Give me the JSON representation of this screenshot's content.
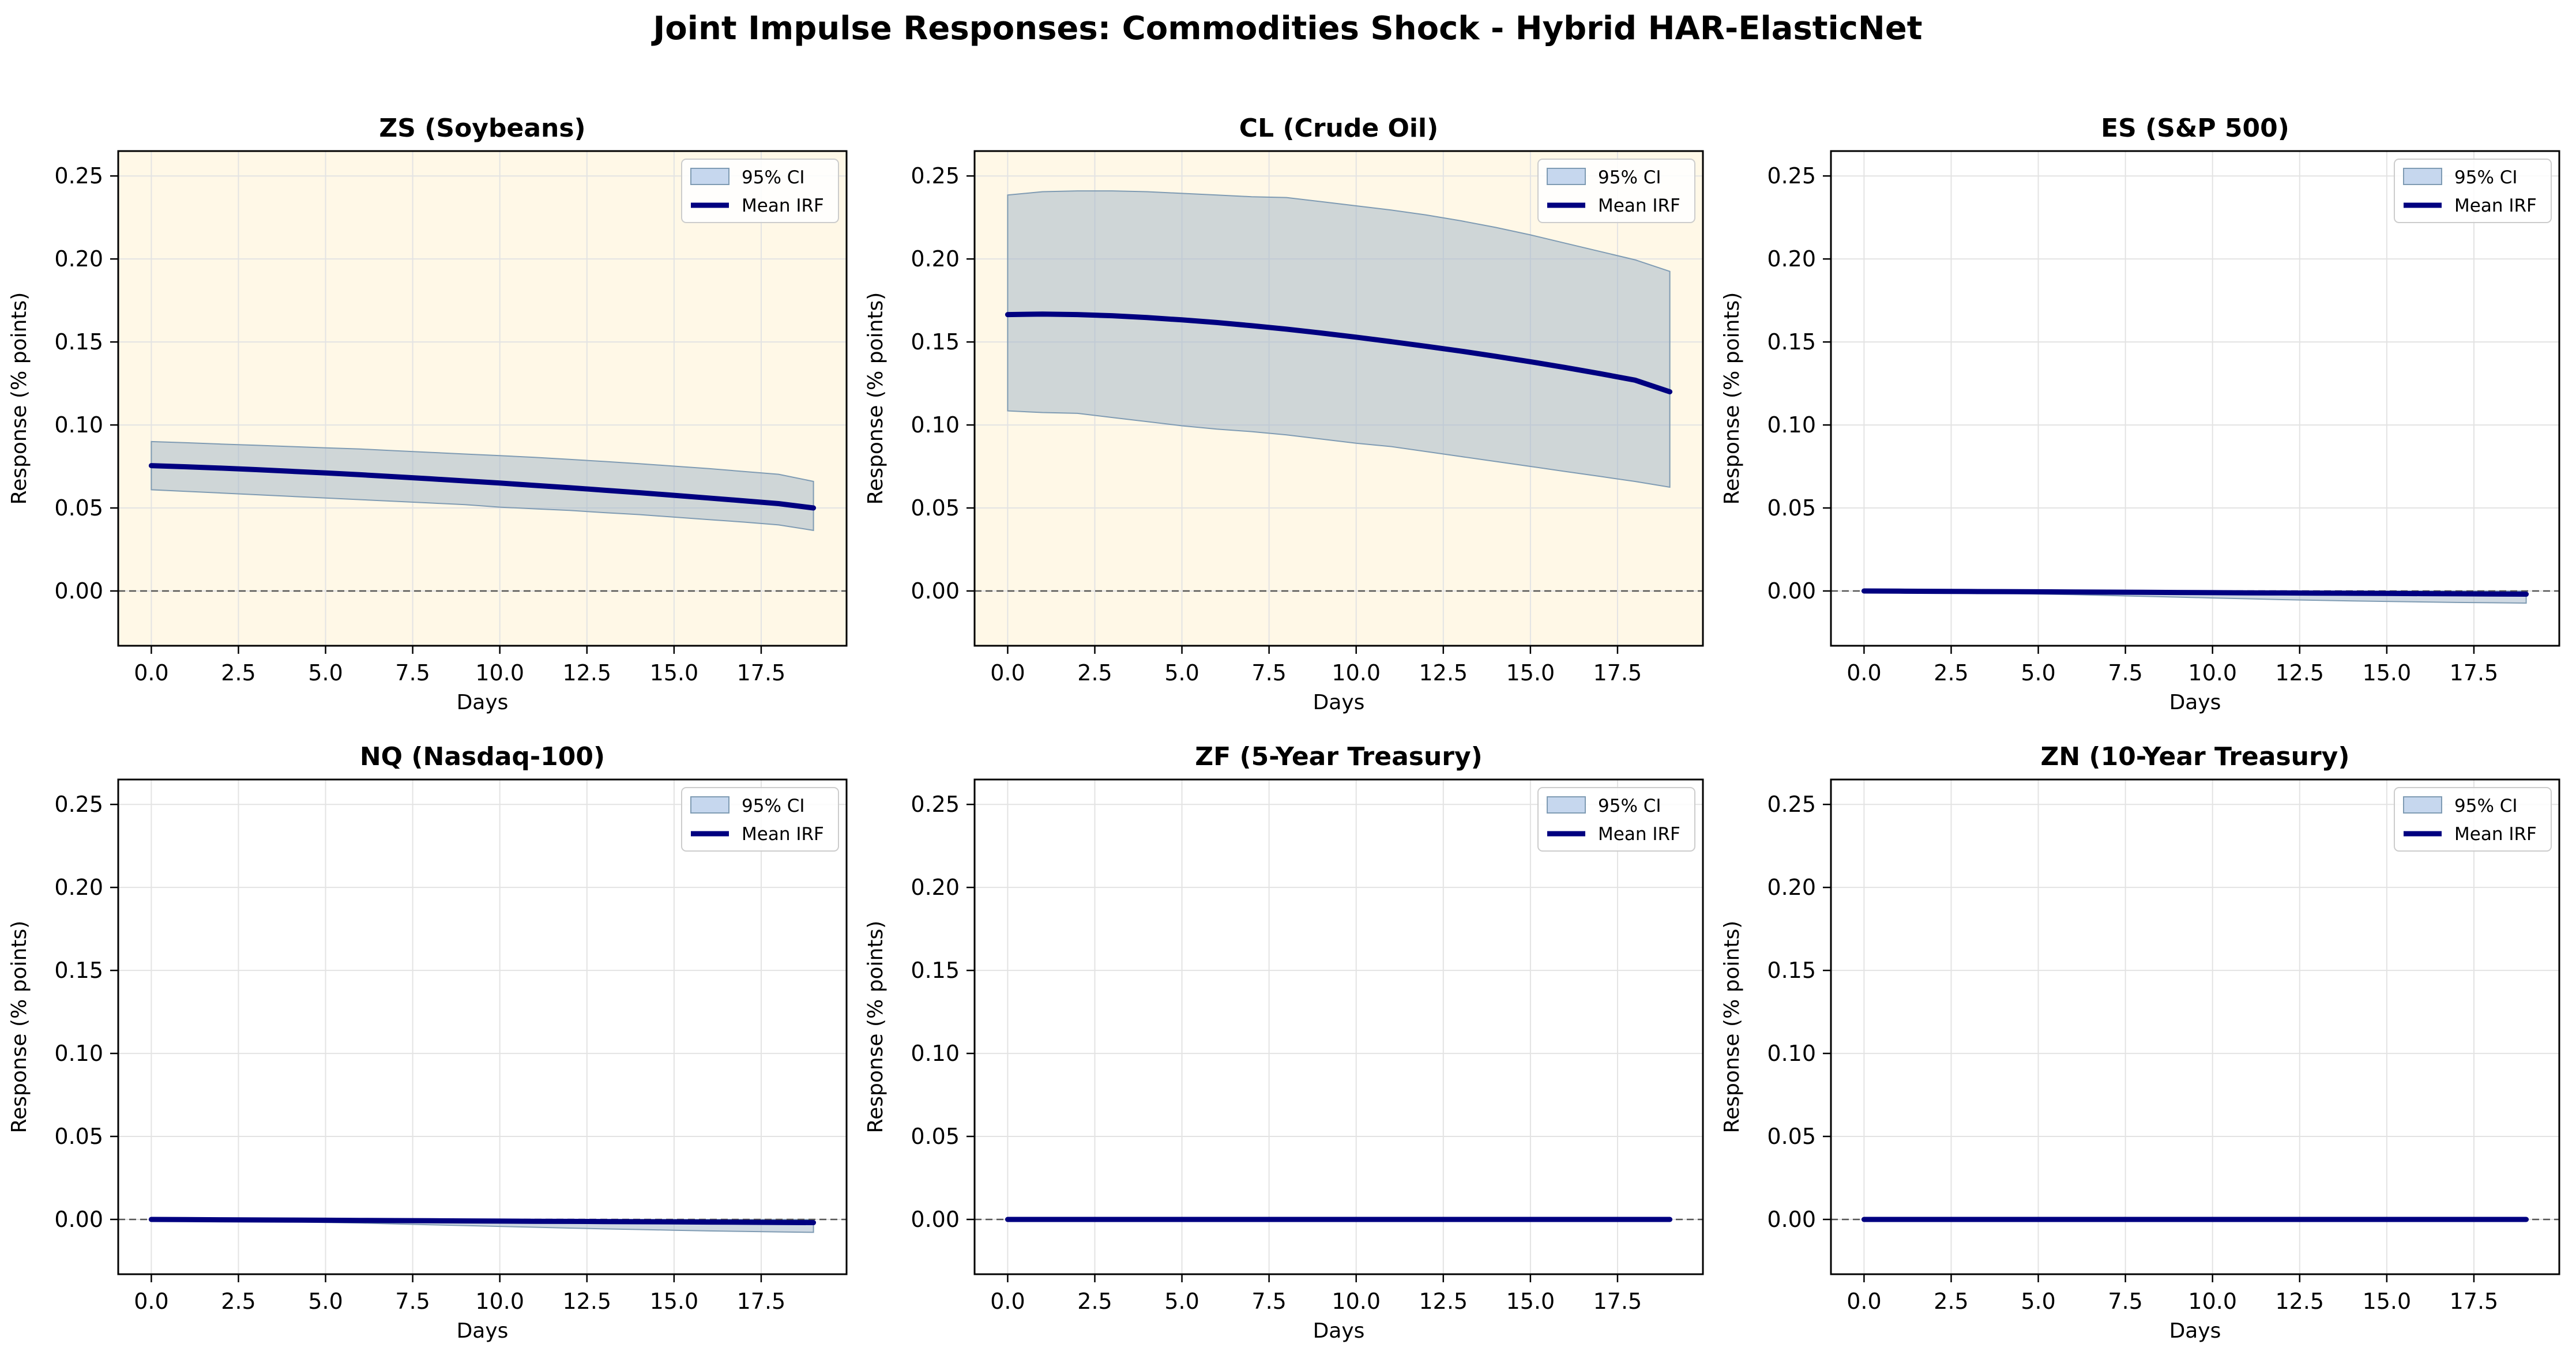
{
  "title": "Joint Impulse Responses: Commodities Shock - Hybrid HAR-ElasticNet",
  "colors": {
    "highlight_bg": "#fff8e7",
    "ci_fill": "#9fb3c8",
    "ci_fill_light": "#c6d7ee",
    "ci_edge": "#7f9bb3",
    "mean_line": "#000080",
    "zero_line": "#555555",
    "grid": "#e3e3e3"
  },
  "chart_data": [
    {
      "type": "area",
      "title": "ZS (Soybeans)",
      "highlight": true,
      "xlabel": "Days",
      "ylabel": "Response (% points)",
      "xlim": [
        -0.95,
        19.95
      ],
      "ylim": [
        -0.033,
        0.265
      ],
      "xticks": [
        "0.0",
        "2.5",
        "5.0",
        "7.5",
        "10.0",
        "12.5",
        "15.0",
        "17.5"
      ],
      "yticks": [
        "0.00",
        "0.05",
        "0.10",
        "0.15",
        "0.20",
        "0.25"
      ],
      "grid": true,
      "legend": {
        "position": "top-right",
        "entries": [
          "95% CI",
          "Mean IRF"
        ]
      },
      "x": [
        0,
        1,
        2,
        3,
        4,
        5,
        6,
        7,
        8,
        9,
        10,
        11,
        12,
        13,
        14,
        15,
        16,
        17,
        18,
        19
      ],
      "series": [
        {
          "name": "Mean IRF",
          "values": [
            0.0755,
            0.0748,
            0.074,
            0.0731,
            0.0721,
            0.0711,
            0.07,
            0.0688,
            0.0676,
            0.0663,
            0.065,
            0.0636,
            0.0622,
            0.0607,
            0.0592,
            0.0576,
            0.056,
            0.0543,
            0.0526,
            0.05
          ]
        },
        {
          "name": "95% CI",
          "lower": [
            0.061,
            0.06,
            0.059,
            0.058,
            0.057,
            0.056,
            0.055,
            0.054,
            0.053,
            0.052,
            0.0505,
            0.0495,
            0.0485,
            0.0472,
            0.046,
            0.0445,
            0.043,
            0.0415,
            0.0398,
            0.0365
          ],
          "upper": [
            0.09,
            0.0893,
            0.0885,
            0.0878,
            0.087,
            0.0862,
            0.0855,
            0.0845,
            0.0835,
            0.0825,
            0.0815,
            0.0805,
            0.0793,
            0.078,
            0.0767,
            0.0752,
            0.0737,
            0.072,
            0.0703,
            0.066
          ]
        }
      ]
    },
    {
      "type": "area",
      "title": "CL (Crude Oil)",
      "highlight": true,
      "xlabel": "Days",
      "ylabel": "Response (% points)",
      "xlim": [
        -0.95,
        19.95
      ],
      "ylim": [
        -0.033,
        0.265
      ],
      "xticks": [
        "0.0",
        "2.5",
        "5.0",
        "7.5",
        "10.0",
        "12.5",
        "15.0",
        "17.5"
      ],
      "yticks": [
        "0.00",
        "0.05",
        "0.10",
        "0.15",
        "0.20",
        "0.25"
      ],
      "grid": true,
      "legend": {
        "position": "top-right",
        "entries": [
          "95% CI",
          "Mean IRF"
        ]
      },
      "x": [
        0,
        1,
        2,
        3,
        4,
        5,
        6,
        7,
        8,
        9,
        10,
        11,
        12,
        13,
        14,
        15,
        16,
        17,
        18,
        19
      ],
      "series": [
        {
          "name": "Mean IRF",
          "values": [
            0.1665,
            0.1668,
            0.1665,
            0.1658,
            0.1647,
            0.1633,
            0.1617,
            0.1598,
            0.1577,
            0.1554,
            0.1529,
            0.1502,
            0.1474,
            0.1445,
            0.1414,
            0.1381,
            0.1346,
            0.1309,
            0.127,
            0.12
          ]
        },
        {
          "name": "95% CI",
          "lower": [
            0.1085,
            0.1075,
            0.107,
            0.1045,
            0.102,
            0.0995,
            0.0975,
            0.096,
            0.094,
            0.0915,
            0.089,
            0.087,
            0.084,
            0.081,
            0.078,
            0.075,
            0.072,
            0.069,
            0.066,
            0.0625
          ],
          "upper": [
            0.2385,
            0.2405,
            0.241,
            0.241,
            0.2405,
            0.2395,
            0.2385,
            0.2375,
            0.237,
            0.2345,
            0.232,
            0.2295,
            0.2265,
            0.223,
            0.219,
            0.2145,
            0.2095,
            0.2045,
            0.1995,
            0.1925
          ]
        }
      ]
    },
    {
      "type": "area",
      "title": "ES (S&P 500)",
      "highlight": false,
      "xlabel": "Days",
      "ylabel": "Response (% points)",
      "xlim": [
        -0.95,
        19.95
      ],
      "ylim": [
        -0.033,
        0.265
      ],
      "xticks": [
        "0.0",
        "2.5",
        "5.0",
        "7.5",
        "10.0",
        "12.5",
        "15.0",
        "17.5"
      ],
      "yticks": [
        "0.00",
        "0.05",
        "0.10",
        "0.15",
        "0.20",
        "0.25"
      ],
      "grid": true,
      "legend": {
        "position": "top-right",
        "entries": [
          "95% CI",
          "Mean IRF"
        ]
      },
      "x": [
        0,
        1,
        2,
        3,
        4,
        5,
        6,
        7,
        8,
        9,
        10,
        11,
        12,
        13,
        14,
        15,
        16,
        17,
        18,
        19
      ],
      "series": [
        {
          "name": "Mean IRF",
          "values": [
            0.0,
            -0.0001,
            -0.0002,
            -0.0003,
            -0.0004,
            -0.0005,
            -0.0006,
            -0.0007,
            -0.0008,
            -0.0009,
            -0.001,
            -0.0011,
            -0.0012,
            -0.0013,
            -0.0014,
            -0.0015,
            -0.0016,
            -0.0017,
            -0.0018,
            -0.0019
          ]
        },
        {
          "name": "95% CI",
          "lower": [
            0.0,
            -0.0003,
            -0.0006,
            -0.001,
            -0.0014,
            -0.0018,
            -0.0022,
            -0.0027,
            -0.0032,
            -0.0037,
            -0.0042,
            -0.0047,
            -0.0052,
            -0.0056,
            -0.006,
            -0.0063,
            -0.0066,
            -0.0069,
            -0.0071,
            -0.0073
          ],
          "upper": [
            0.0003,
            0.0003,
            0.0003,
            0.0002,
            0.0002,
            0.0002,
            0.0001,
            0.0001,
            0.0,
            0.0,
            0.0,
            -0.0001,
            -0.0001,
            -0.0001,
            -0.0001,
            -0.0001,
            -0.0001,
            -0.0001,
            -0.0001,
            -0.0001
          ]
        }
      ]
    },
    {
      "type": "area",
      "title": "NQ (Nasdaq-100)",
      "highlight": false,
      "xlabel": "Days",
      "ylabel": "Response (% points)",
      "xlim": [
        -0.95,
        19.95
      ],
      "ylim": [
        -0.033,
        0.265
      ],
      "xticks": [
        "0.0",
        "2.5",
        "5.0",
        "7.5",
        "10.0",
        "12.5",
        "15.0",
        "17.5"
      ],
      "yticks": [
        "0.00",
        "0.05",
        "0.10",
        "0.15",
        "0.20",
        "0.25"
      ],
      "grid": true,
      "legend": {
        "position": "top-right",
        "entries": [
          "95% CI",
          "Mean IRF"
        ]
      },
      "x": [
        0,
        1,
        2,
        3,
        4,
        5,
        6,
        7,
        8,
        9,
        10,
        11,
        12,
        13,
        14,
        15,
        16,
        17,
        18,
        19
      ],
      "series": [
        {
          "name": "Mean IRF",
          "values": [
            0.0,
            -0.0001,
            -0.0002,
            -0.0003,
            -0.0004,
            -0.0005,
            -0.0006,
            -0.0007,
            -0.0008,
            -0.0009,
            -0.001,
            -0.0011,
            -0.0012,
            -0.0013,
            -0.0014,
            -0.0015,
            -0.0016,
            -0.0017,
            -0.0018,
            -0.0019
          ]
        },
        {
          "name": "95% CI",
          "lower": [
            0.0,
            -0.0003,
            -0.0006,
            -0.001,
            -0.0014,
            -0.0018,
            -0.0022,
            -0.0027,
            -0.0032,
            -0.0037,
            -0.0042,
            -0.0047,
            -0.0052,
            -0.0057,
            -0.0061,
            -0.0065,
            -0.0069,
            -0.0072,
            -0.0075,
            -0.0078
          ],
          "upper": [
            0.0003,
            0.0003,
            0.0003,
            0.0002,
            0.0002,
            0.0002,
            0.0001,
            0.0001,
            0.0,
            0.0,
            0.0,
            -0.0001,
            -0.0001,
            -0.0001,
            -0.0001,
            -0.0001,
            -0.0001,
            -0.0001,
            -0.0001,
            -0.0001
          ]
        }
      ]
    },
    {
      "type": "area",
      "title": "ZF (5-Year Treasury)",
      "highlight": false,
      "xlabel": "Days",
      "ylabel": "Response (% points)",
      "xlim": [
        -0.95,
        19.95
      ],
      "ylim": [
        -0.033,
        0.265
      ],
      "xticks": [
        "0.0",
        "2.5",
        "5.0",
        "7.5",
        "10.0",
        "12.5",
        "15.0",
        "17.5"
      ],
      "yticks": [
        "0.00",
        "0.05",
        "0.10",
        "0.15",
        "0.20",
        "0.25"
      ],
      "grid": true,
      "legend": {
        "position": "top-right",
        "entries": [
          "95% CI",
          "Mean IRF"
        ]
      },
      "x": [
        0,
        1,
        2,
        3,
        4,
        5,
        6,
        7,
        8,
        9,
        10,
        11,
        12,
        13,
        14,
        15,
        16,
        17,
        18,
        19
      ],
      "series": [
        {
          "name": "Mean IRF",
          "values": [
            0,
            0,
            0,
            0,
            0,
            0,
            0,
            0,
            0,
            0,
            0,
            0,
            0,
            0,
            0,
            0,
            0,
            0,
            0,
            0
          ]
        },
        {
          "name": "95% CI",
          "lower": [
            -0.0002,
            -0.0002,
            -0.0002,
            -0.0002,
            -0.0002,
            -0.0002,
            -0.0002,
            -0.0002,
            -0.0002,
            -0.0002,
            -0.0002,
            -0.0002,
            -0.0002,
            -0.0002,
            -0.0002,
            -0.0002,
            -0.0002,
            -0.0002,
            -0.0002,
            -0.0002
          ],
          "upper": [
            0.0002,
            0.0002,
            0.0002,
            0.0002,
            0.0002,
            0.0002,
            0.0002,
            0.0002,
            0.0002,
            0.0002,
            0.0002,
            0.0002,
            0.0002,
            0.0002,
            0.0002,
            0.0002,
            0.0002,
            0.0002,
            0.0002,
            0.0002
          ]
        }
      ]
    },
    {
      "type": "area",
      "title": "ZN (10-Year Treasury)",
      "highlight": false,
      "xlabel": "Days",
      "ylabel": "Response (% points)",
      "xlim": [
        -0.95,
        19.95
      ],
      "ylim": [
        -0.033,
        0.265
      ],
      "xticks": [
        "0.0",
        "2.5",
        "5.0",
        "7.5",
        "10.0",
        "12.5",
        "15.0",
        "17.5"
      ],
      "yticks": [
        "0.00",
        "0.05",
        "0.10",
        "0.15",
        "0.20",
        "0.25"
      ],
      "grid": true,
      "legend": {
        "position": "top-right",
        "entries": [
          "95% CI",
          "Mean IRF"
        ]
      },
      "x": [
        0,
        1,
        2,
        3,
        4,
        5,
        6,
        7,
        8,
        9,
        10,
        11,
        12,
        13,
        14,
        15,
        16,
        17,
        18,
        19
      ],
      "series": [
        {
          "name": "Mean IRF",
          "values": [
            0,
            0,
            0,
            0,
            0,
            0,
            0,
            0,
            0,
            0,
            0,
            0,
            0,
            0,
            0,
            0,
            0,
            0,
            0,
            0
          ]
        },
        {
          "name": "95% CI",
          "lower": [
            -0.0002,
            -0.0002,
            -0.0002,
            -0.0002,
            -0.0002,
            -0.0002,
            -0.0002,
            -0.0002,
            -0.0002,
            -0.0002,
            -0.0002,
            -0.0002,
            -0.0002,
            -0.0002,
            -0.0002,
            -0.0002,
            -0.0002,
            -0.0002,
            -0.0002,
            -0.0002
          ],
          "upper": [
            0.0002,
            0.0002,
            0.0002,
            0.0002,
            0.0002,
            0.0002,
            0.0002,
            0.0002,
            0.0002,
            0.0002,
            0.0002,
            0.0002,
            0.0002,
            0.0002,
            0.0002,
            0.0002,
            0.0002,
            0.0002,
            0.0002,
            0.0002
          ]
        }
      ]
    }
  ]
}
